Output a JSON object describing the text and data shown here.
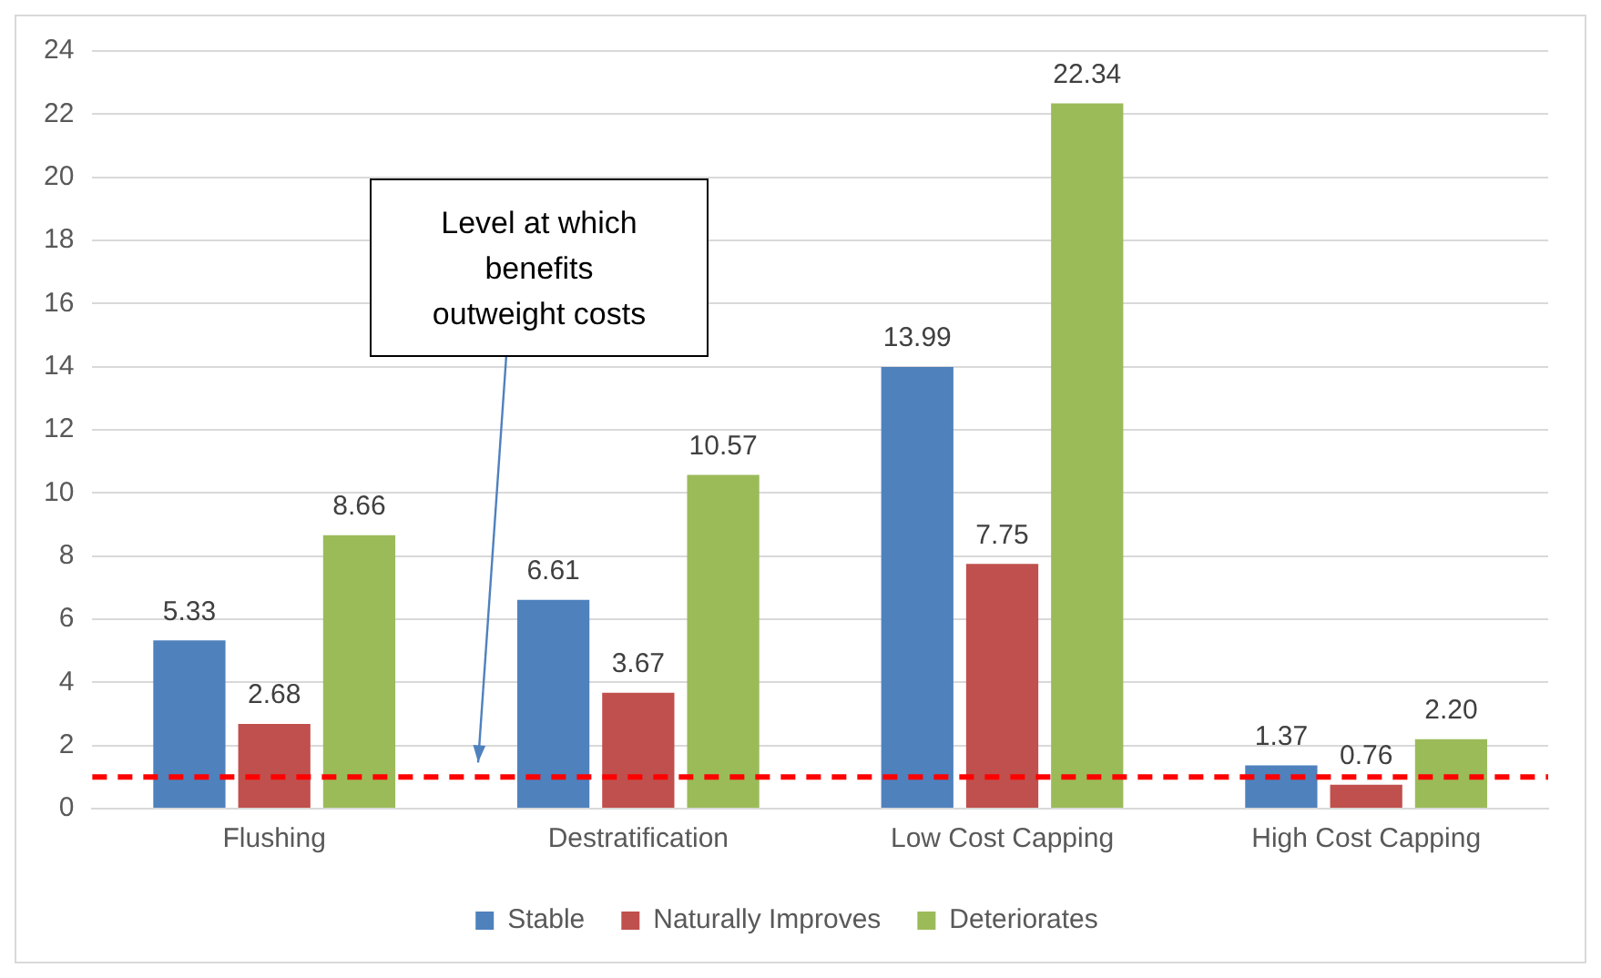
{
  "chart_data": {
    "type": "bar",
    "categories": [
      "Flushing",
      "Destratification",
      "Low Cost Capping",
      "High Cost Capping"
    ],
    "series": [
      {
        "name": "Stable",
        "color": "#4f81bd",
        "values": [
          5.33,
          6.61,
          13.99,
          1.37
        ],
        "value_labels": [
          "5.33",
          "6.61",
          "13.99",
          "1.37"
        ]
      },
      {
        "name": "Naturally Improves",
        "color": "#c0504d",
        "values": [
          2.68,
          3.67,
          7.75,
          0.76
        ],
        "value_labels": [
          "2.68",
          "3.67",
          "7.75",
          "0.76"
        ]
      },
      {
        "name": "Deteriorates",
        "color": "#9bbb59",
        "values": [
          8.66,
          10.57,
          22.34,
          2.2
        ],
        "value_labels": [
          "8.66",
          "10.57",
          "22.34",
          "2.20"
        ]
      }
    ],
    "ylim": [
      0,
      24
    ],
    "yticks": [
      0,
      2,
      4,
      6,
      8,
      10,
      12,
      14,
      16,
      18,
      20,
      22,
      24
    ],
    "grid": "y",
    "legend": "bottom",
    "ref_lines": [
      {
        "axis": "y",
        "value": 1,
        "label": "Level at which benefits outweight costs",
        "color": "#ff0000",
        "line_style": "dashed"
      }
    ]
  }
}
